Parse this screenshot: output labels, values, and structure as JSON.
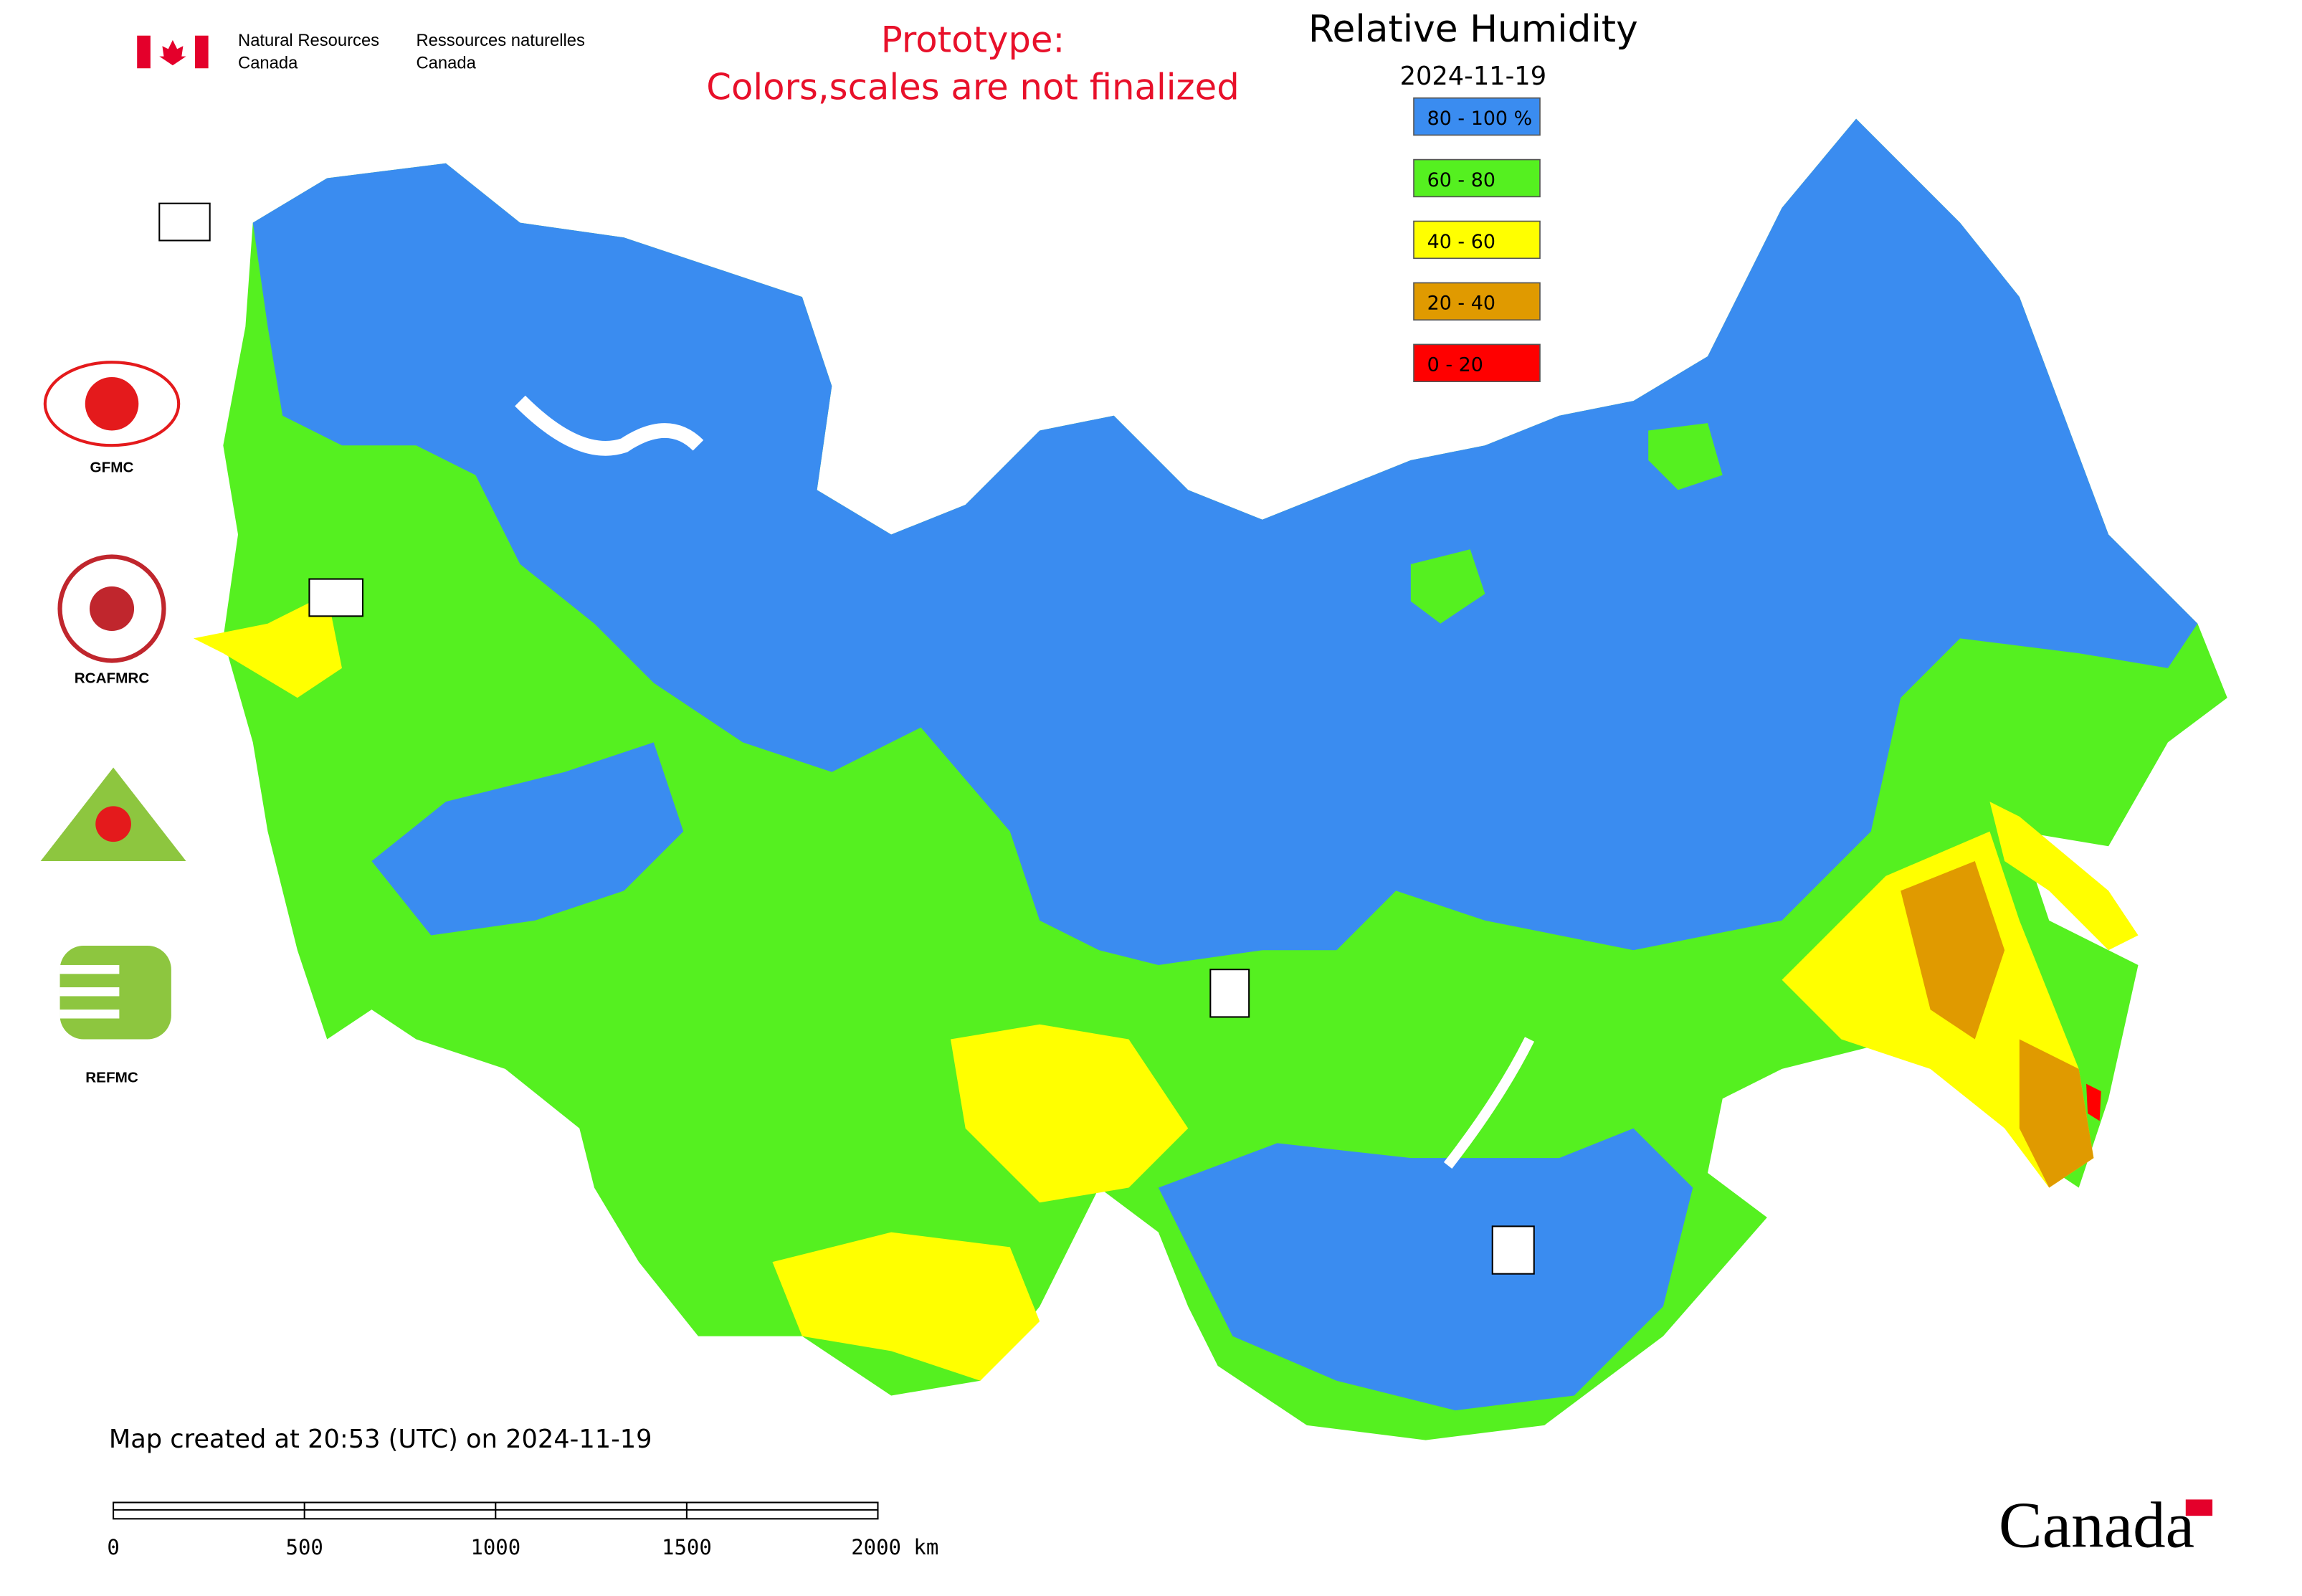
{
  "header": {
    "agency_en": [
      "Natural Resources",
      "Canada"
    ],
    "agency_fr": [
      "Ressources naturelles",
      "Canada"
    ],
    "prototype_note": [
      "Prototype:",
      "Colors,scales are not finalized"
    ]
  },
  "title": "Relative Humidity",
  "date": "2024-11-19",
  "legend": [
    {
      "label": "80 - 100 %",
      "color": "#3a8cf0"
    },
    {
      "label": "60 - 80",
      "color": "#55f020"
    },
    {
      "label": "40 - 60",
      "color": "#ffff00"
    },
    {
      "label": "20 - 40",
      "color": "#e09a00"
    },
    {
      "label": "0 - 20",
      "color": "#ff0000"
    }
  ],
  "logos": [
    "GFMC",
    "RCAFMRC",
    "REFMC"
  ],
  "footer": "Map created at 20:53 (UTC) on 2024-11-19",
  "scale_bar": {
    "labels": [
      "0",
      "500",
      "1000",
      "1500",
      "2000 km"
    ]
  },
  "wordmark": "Canada"
}
